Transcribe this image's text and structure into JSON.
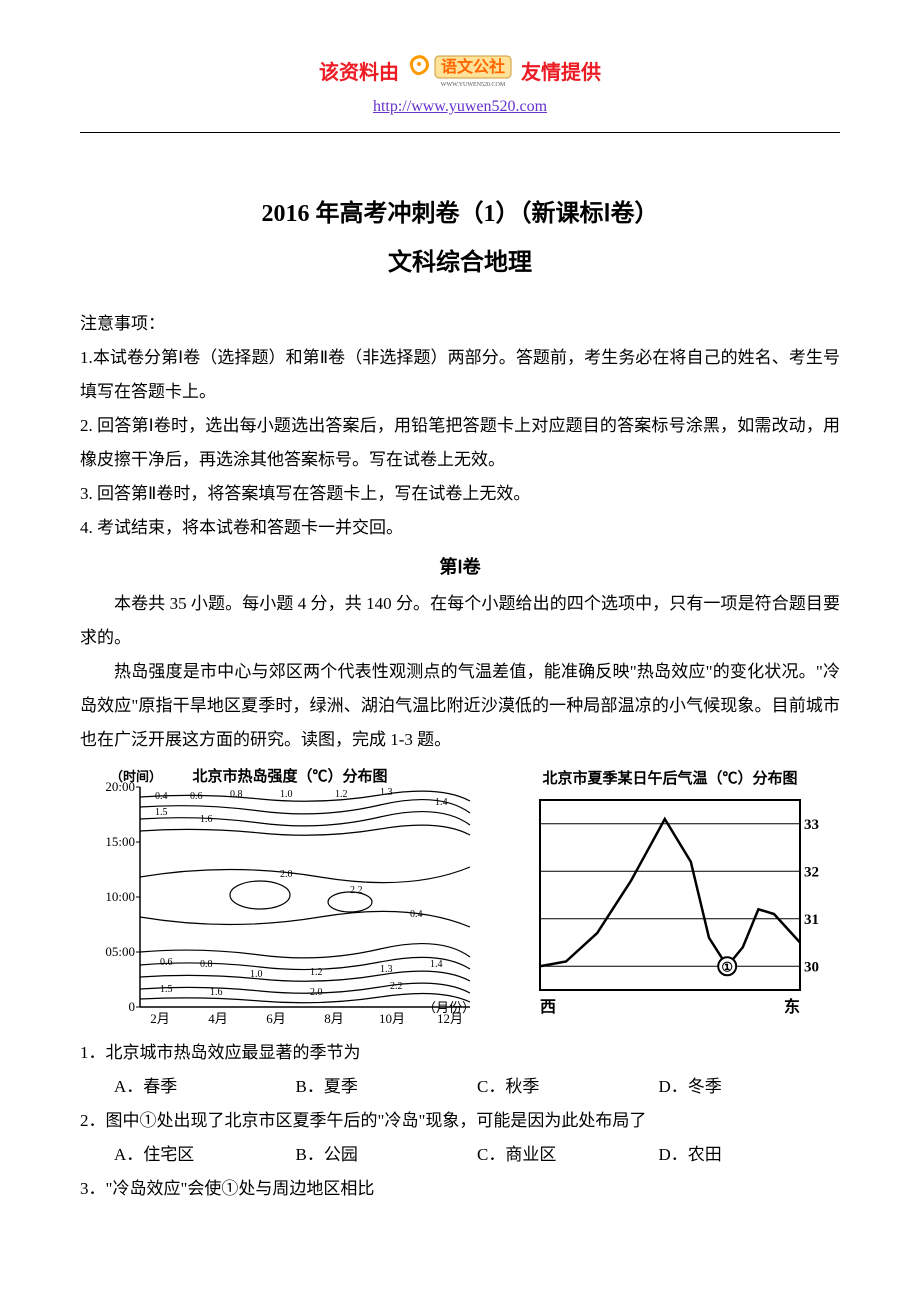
{
  "header": {
    "left_text": "该资料由",
    "right_text": "友情提供",
    "logo_text": "语文公社",
    "logo_sub": "WWW.YUWEN520.COM",
    "logo_bg": "#ffe29a",
    "logo_text_color": "#ff6600",
    "swirl_color": "#ff9900",
    "link": "http://www.yuwen520.com"
  },
  "title": "2016 年高考冲刺卷（1）（新课标Ⅰ卷）",
  "subtitle": "文科综合地理",
  "notice_heading": "注意事项：",
  "notices": [
    "1.本试卷分第Ⅰ卷（选择题）和第Ⅱ卷（非选择题）两部分。答题前，考生务必在将自己的姓名、考生号填写在答题卡上。",
    "2. 回答第Ⅰ卷时，选出每小题选出答案后，用铅笔把答题卡上对应题目的答案标号涂黑，如需改动，用橡皮擦干净后，再选涂其他答案标号。写在试卷上无效。",
    "3. 回答第Ⅱ卷时，将答案填写在答题卡上，写在试卷上无效。",
    "4. 考试结束，将本试卷和答题卡一并交回。"
  ],
  "section1_title": "第Ⅰ卷",
  "section1_intro": "本卷共 35 小题。每小题 4 分，共 140 分。在每个小题给出的四个选项中，只有一项是符合题目要求的。",
  "passage": "热岛强度是市中心与郊区两个代表性观测点的气温差值，能准确反映\"热岛效应\"的变化状况。\"冷岛效应\"原指干旱地区夏季时，绿洲、湖泊气温比附近沙漠低的一种局部温凉的小气候现象。目前城市也在广泛开展这方面的研究。读图，完成 1-3 题。",
  "contour_chart": {
    "title": "北京市热岛强度（℃）分布图",
    "x_label": "（月份）",
    "y_label": "（时间）",
    "x_ticks": [
      "2月",
      "4月",
      "6月",
      "8月",
      "10月",
      "12月"
    ],
    "y_ticks": [
      "0",
      "05:00",
      "10:00",
      "15:00",
      "20:00"
    ],
    "contour_levels": [
      "0.4",
      "0.6",
      "0.8",
      "1.0",
      "1.2",
      "1.3",
      "1.4",
      "1.5",
      "1.6",
      "2.0",
      "2.2"
    ],
    "line_color": "#000000",
    "background_color": "#ffffff",
    "font_size": 11
  },
  "line_chart": {
    "title": "北京市夏季某日午后气温（℃）分布图",
    "x_left": "西",
    "x_right": "东",
    "y_ticks": [
      30,
      31,
      32,
      33
    ],
    "ylim": [
      29.5,
      33.5
    ],
    "line_color": "#000000",
    "marker_label": "①",
    "points_x": [
      0,
      10,
      22,
      35,
      48,
      58,
      65,
      72,
      78,
      84,
      90,
      100
    ],
    "points_y": [
      30.0,
      30.1,
      30.7,
      31.8,
      33.1,
      32.2,
      30.6,
      30.0,
      30.4,
      31.2,
      31.1,
      30.5
    ],
    "marker_x": 72,
    "marker_y": 30.0,
    "grid_color": "#000000",
    "background_color": "#ffffff",
    "font_size": 14
  },
  "questions": [
    {
      "num": "1．",
      "text": "北京城市热岛效应最显著的季节为",
      "options": {
        "A": "A．春季",
        "B": "B．夏季",
        "C": "C．秋季",
        "D": "D．冬季"
      }
    },
    {
      "num": "2．",
      "text": "图中①处出现了北京市区夏季午后的\"冷岛\"现象，可能是因为此处布局了",
      "options": {
        "A": "A．住宅区",
        "B": "B．公园",
        "C": "C．商业区",
        "D": "D．农田"
      }
    },
    {
      "num": "3．",
      "text": "\"冷岛效应\"会使①处与周边地区相比",
      "options": null
    }
  ]
}
